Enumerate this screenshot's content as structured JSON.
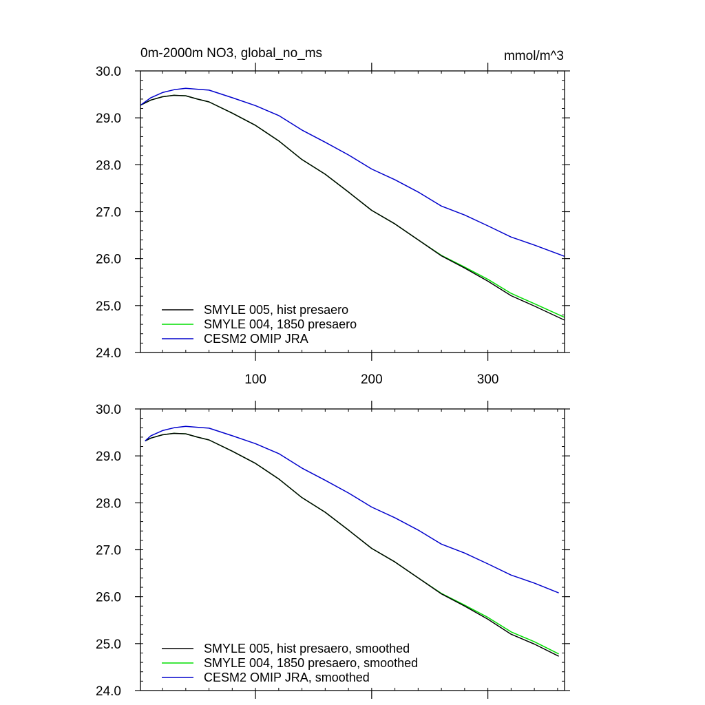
{
  "chart_data": [
    {
      "type": "line",
      "title": "0m-2000m NO3, global_no_ms",
      "units": "mmol/m^3",
      "xlim": [
        1,
        366
      ],
      "ylim": [
        24.0,
        30.0
      ],
      "x_tick_labels": [
        "100",
        "200",
        "300"
      ],
      "x_ticks": [
        100,
        200,
        300
      ],
      "y_tick_labels": [
        "24.0",
        "25.0",
        "26.0",
        "27.0",
        "28.0",
        "29.0",
        "30.0"
      ],
      "y_ticks": [
        24.0,
        25.0,
        26.0,
        27.0,
        28.0,
        29.0,
        30.0
      ],
      "grid": false,
      "legend_position": "bottom-left",
      "series": [
        {
          "name": "SMYLE 005, hist presaero",
          "color": "#000000",
          "x": [
            1,
            10,
            20,
            30,
            40,
            50,
            60,
            80,
            100,
            120,
            140,
            160,
            180,
            200,
            220,
            240,
            260,
            280,
            300,
            320,
            340,
            366
          ],
          "y": [
            29.27,
            29.38,
            29.45,
            29.48,
            29.47,
            29.4,
            29.34,
            29.1,
            28.84,
            28.51,
            28.11,
            27.8,
            27.42,
            27.03,
            26.74,
            26.4,
            26.06,
            25.8,
            25.52,
            25.21,
            24.99,
            24.69
          ]
        },
        {
          "name": "SMYLE 004, 1850 presaero",
          "color": "#00dd00",
          "x": [
            1,
            10,
            20,
            30,
            40,
            50,
            60,
            80,
            100,
            120,
            140,
            160,
            180,
            200,
            220,
            240,
            260,
            280,
            300,
            320,
            340,
            366
          ],
          "y": [
            29.27,
            29.38,
            29.45,
            29.48,
            29.47,
            29.4,
            29.34,
            29.1,
            28.84,
            28.51,
            28.11,
            27.8,
            27.42,
            27.03,
            26.74,
            26.4,
            26.07,
            25.82,
            25.56,
            25.26,
            25.04,
            24.75
          ]
        },
        {
          "name": "CESM2 OMIP JRA",
          "color": "#0000cc",
          "x": [
            1,
            10,
            20,
            30,
            40,
            50,
            60,
            80,
            100,
            120,
            140,
            160,
            180,
            200,
            220,
            240,
            260,
            280,
            300,
            320,
            340,
            366
          ],
          "y": [
            29.27,
            29.43,
            29.54,
            29.6,
            29.63,
            29.61,
            29.59,
            29.43,
            29.26,
            29.05,
            28.74,
            28.48,
            28.21,
            27.91,
            27.68,
            27.42,
            27.12,
            26.93,
            26.7,
            26.46,
            26.29,
            26.05
          ]
        }
      ]
    },
    {
      "type": "line",
      "title": "",
      "units": "",
      "xlim": [
        1,
        366
      ],
      "ylim": [
        24.0,
        30.0
      ],
      "x_tick_labels": [],
      "x_ticks": [
        100,
        200,
        300
      ],
      "y_tick_labels": [
        "24.0",
        "25.0",
        "26.0",
        "27.0",
        "28.0",
        "29.0",
        "30.0"
      ],
      "y_ticks": [
        24.0,
        25.0,
        26.0,
        27.0,
        28.0,
        29.0,
        30.0
      ],
      "grid": false,
      "legend_position": "bottom-left",
      "series": [
        {
          "name": "SMYLE 005, hist presaero, smoothed",
          "color": "#000000",
          "x": [
            5,
            10,
            20,
            30,
            40,
            50,
            60,
            80,
            100,
            120,
            140,
            160,
            180,
            200,
            220,
            240,
            260,
            280,
            300,
            320,
            340,
            361
          ],
          "y": [
            29.32,
            29.38,
            29.45,
            29.48,
            29.47,
            29.4,
            29.34,
            29.1,
            28.84,
            28.51,
            28.11,
            27.8,
            27.42,
            27.03,
            26.74,
            26.4,
            26.06,
            25.8,
            25.52,
            25.2,
            24.99,
            24.73
          ]
        },
        {
          "name": "SMYLE 004, 1850 presaero, smoothed",
          "color": "#00dd00",
          "x": [
            5,
            10,
            20,
            30,
            40,
            50,
            60,
            80,
            100,
            120,
            140,
            160,
            180,
            200,
            220,
            240,
            260,
            280,
            300,
            320,
            340,
            361
          ],
          "y": [
            29.32,
            29.38,
            29.45,
            29.48,
            29.47,
            29.4,
            29.34,
            29.1,
            28.84,
            28.51,
            28.11,
            27.8,
            27.42,
            27.03,
            26.74,
            26.4,
            26.07,
            25.82,
            25.56,
            25.25,
            25.04,
            24.78
          ]
        },
        {
          "name": "CESM2 OMIP JRA, smoothed",
          "color": "#0000cc",
          "x": [
            5,
            10,
            20,
            30,
            40,
            50,
            60,
            80,
            100,
            120,
            140,
            160,
            180,
            200,
            220,
            240,
            260,
            280,
            300,
            320,
            340,
            361
          ],
          "y": [
            29.32,
            29.43,
            29.54,
            29.6,
            29.63,
            29.61,
            29.59,
            29.43,
            29.26,
            29.05,
            28.74,
            28.48,
            28.21,
            27.91,
            27.68,
            27.42,
            27.12,
            26.93,
            26.7,
            26.46,
            26.29,
            26.08
          ]
        }
      ]
    }
  ]
}
